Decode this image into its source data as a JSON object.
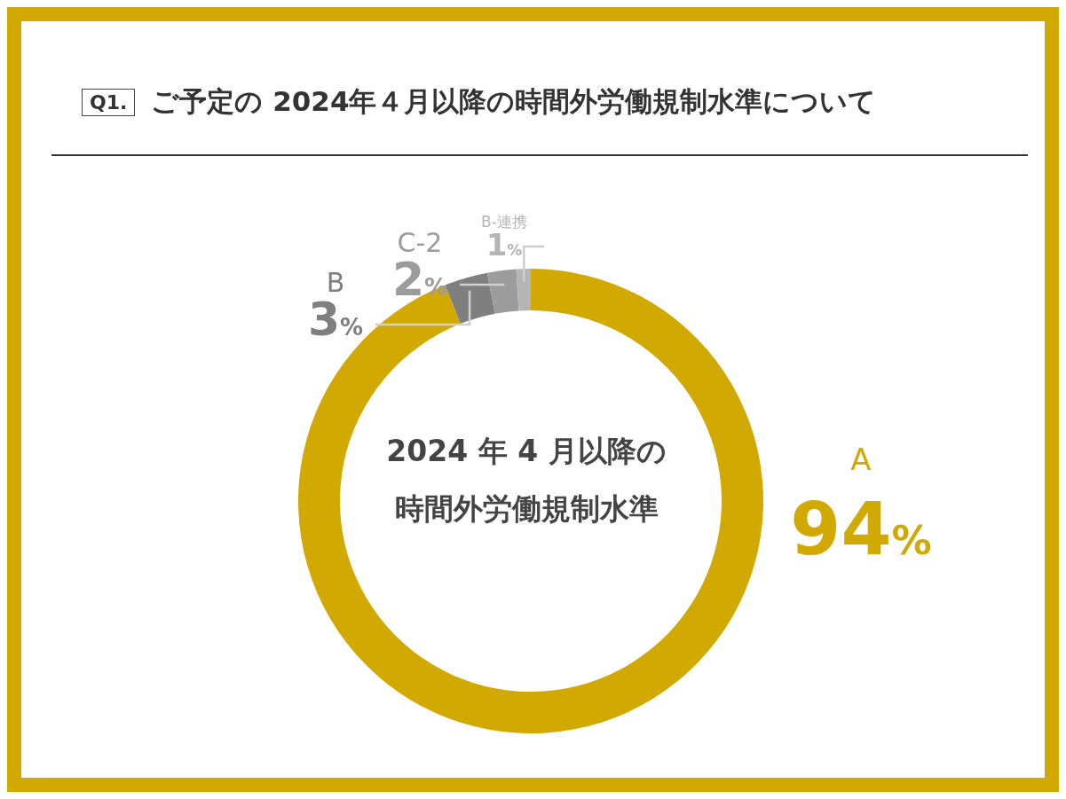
{
  "chart_data": {
    "type": "donut",
    "title": "ご予定の 2024年４月以降の時間外労働規制水準について",
    "annotations": [
      "Q1.",
      "2024 年 4 月以降の",
      "時間外労働規制水準"
    ],
    "categories": [
      "A",
      "B",
      "C-2",
      "B-連携"
    ],
    "values": [
      94,
      3,
      2,
      1
    ],
    "value_labels": [
      "94%",
      "3%",
      "2%",
      "1%"
    ],
    "colors": [
      "#d1a900",
      "#7f7f7f",
      "#9c9c9c",
      "#b5b5b5"
    ]
  }
}
